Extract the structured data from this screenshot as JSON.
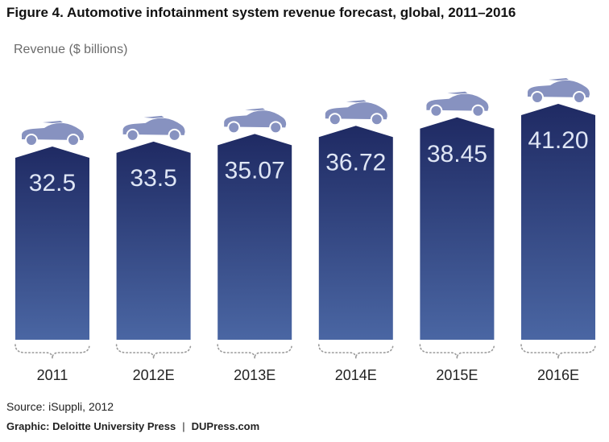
{
  "colors": {
    "bar_top": "#1f2a63",
    "bar_bottom": "#4a66a3",
    "car": "#8792c0",
    "value_text": "#dfe6f5",
    "bracket": "#9a9a9a"
  },
  "icons": {
    "bar_cap": "car-icon"
  },
  "chart_data": {
    "type": "bar",
    "title": "Figure 4. Automotive infotainment system revenue forecast, global, 2011–2016",
    "ylabel": "Revenue ($ billions)",
    "xlabel": "",
    "categories": [
      "2011",
      "2012E",
      "2013E",
      "2014E",
      "2015E",
      "2016E"
    ],
    "values": [
      32.5,
      33.5,
      35.07,
      36.72,
      38.45,
      41.2
    ],
    "value_labels": [
      "32.5",
      "33.5",
      "35.07",
      "36.72",
      "38.45",
      "41.20"
    ],
    "ylim": [
      0,
      42
    ],
    "grid": false,
    "legend": "none"
  },
  "footer": {
    "source": "Source: iSuppli, 2012",
    "graphic_credit": "Graphic: Deloitte University Press",
    "site": "DUPress.com"
  }
}
